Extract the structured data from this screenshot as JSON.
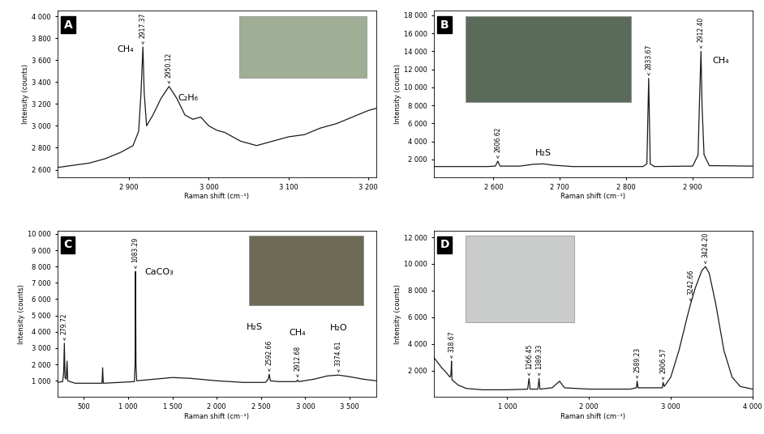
{
  "chart_data": [
    {
      "type": "line",
      "title": "A",
      "x_label": "Raman shift (cm⁻¹)",
      "y_label": "Intensity (counts)",
      "color": "#1a1a1a",
      "x": [
        2810,
        2830,
        2850,
        2870,
        2890,
        2905,
        2912,
        2915,
        2917.37,
        2919,
        2922,
        2930,
        2940,
        2950.12,
        2960,
        2970,
        2980,
        2990,
        3000,
        3010,
        3020,
        3040,
        3060,
        3080,
        3100,
        3120,
        3140,
        3160,
        3180,
        3200,
        3210
      ],
      "values": [
        2620,
        2640,
        2660,
        2700,
        2760,
        2820,
        2950,
        3300,
        3720,
        3300,
        3000,
        3100,
        3250,
        3360,
        3250,
        3100,
        3060,
        3080,
        3000,
        2960,
        2940,
        2860,
        2820,
        2860,
        2900,
        2920,
        2980,
        3020,
        3080,
        3140,
        3160
      ],
      "xlim": [
        2810,
        3210
      ],
      "ylim": [
        2530,
        4050
      ],
      "xticks": [
        {
          "value": 2900,
          "label": "2 900"
        },
        {
          "value": 3000,
          "label": "3 000"
        },
        {
          "value": 3100,
          "label": "3 100"
        },
        {
          "value": 3200,
          "label": "3 200"
        }
      ],
      "yticks": [
        {
          "value": 2600,
          "label": "2 600"
        },
        {
          "value": 2800,
          "label": "2 800"
        },
        {
          "value": 3000,
          "label": "3 000"
        },
        {
          "value": 3200,
          "label": "3 200"
        },
        {
          "value": 3400,
          "label": "3 400"
        },
        {
          "value": 3600,
          "label": "3 600"
        },
        {
          "value": 3800,
          "label": "3 800"
        },
        {
          "value": 4000,
          "label": "4 000"
        }
      ],
      "peak_labels": [
        {
          "x": 2917.37,
          "label": "2917.37"
        },
        {
          "x": 2950.12,
          "label": "2950.12"
        }
      ],
      "species_labels": [
        {
          "text": "CH₄",
          "x": 2917.37
        },
        {
          "text": "C₂H₆",
          "x": 2950.12
        }
      ]
    },
    {
      "type": "line",
      "title": "B",
      "x_label": "Raman shift (cm⁻¹)",
      "y_label": "Intensity (counts)",
      "color": "#1a1a1a",
      "x": [
        2510,
        2590,
        2603,
        2606.62,
        2610,
        2640,
        2660,
        2675,
        2690,
        2720,
        2825,
        2831,
        2833.67,
        2836,
        2842,
        2900,
        2908,
        2910,
        2912.4,
        2914,
        2917,
        2925,
        2990
      ],
      "values": [
        1200,
        1200,
        1250,
        1800,
        1250,
        1250,
        1450,
        1500,
        1350,
        1200,
        1200,
        1500,
        11000,
        1500,
        1200,
        1250,
        2500,
        8000,
        14000,
        8000,
        2500,
        1300,
        1250
      ],
      "xlim": [
        2510,
        2990
      ],
      "ylim": [
        0,
        18500
      ],
      "xticks": [
        {
          "value": 2600,
          "label": "2 600"
        },
        {
          "value": 2700,
          "label": "2 700"
        },
        {
          "value": 2800,
          "label": "2 800"
        },
        {
          "value": 2900,
          "label": "2 900"
        }
      ],
      "yticks": [
        {
          "value": 2000,
          "label": "2 000"
        },
        {
          "value": 4000,
          "label": "4 000"
        },
        {
          "value": 6000,
          "label": "6 000"
        },
        {
          "value": 8000,
          "label": "8 000"
        },
        {
          "value": 10000,
          "label": "10 000"
        },
        {
          "value": 12000,
          "label": "12 000"
        },
        {
          "value": 14000,
          "label": "14 000"
        },
        {
          "value": 16000,
          "label": "16 000"
        },
        {
          "value": 18000,
          "label": "18 000"
        }
      ],
      "peak_labels": [
        {
          "x": 2606.62,
          "label": "2606.62"
        },
        {
          "x": 2833.67,
          "label": "2833.67"
        },
        {
          "x": 2912.4,
          "label": "2912.40"
        }
      ],
      "species_labels": [
        {
          "text": "H₂S",
          "x": 2675
        },
        {
          "text": "CH₄",
          "x": 2912.4
        }
      ]
    },
    {
      "type": "line",
      "title": "C",
      "x_label": "Raman shift (cm⁻¹)",
      "y_label": "Intensity (counts)",
      "color": "#1a1a1a",
      "x": [
        200,
        260,
        272,
        279.72,
        287,
        300,
        310,
        318,
        400,
        600,
        705,
        712,
        719,
        900,
        1070,
        1078,
        1083.29,
        1088,
        1096,
        1300,
        1500,
        1700,
        2000,
        2300,
        2550,
        2580,
        2592.66,
        2605,
        2700,
        2900,
        2912.68,
        2925,
        3100,
        3250,
        3374.61,
        3500,
        3650,
        3800
      ],
      "values": [
        900,
        950,
        1500,
        3300,
        1200,
        1100,
        2200,
        1000,
        850,
        850,
        850,
        1800,
        850,
        900,
        950,
        2000,
        7700,
        2000,
        1000,
        1100,
        1200,
        1150,
        1000,
        900,
        900,
        1100,
        1400,
        1000,
        950,
        950,
        1050,
        950,
        1100,
        1300,
        1350,
        1250,
        1100,
        1000
      ],
      "xlim": [
        200,
        3800
      ],
      "ylim": [
        0,
        10200
      ],
      "xticks": [
        500,
        {
          "value": 1000,
          "label": "1 000"
        },
        {
          "value": 1500,
          "label": "1 500"
        },
        {
          "value": 2000,
          "label": "2 000"
        },
        {
          "value": 2500,
          "label": "2 500"
        },
        {
          "value": 3000,
          "label": "3 000"
        },
        {
          "value": 3500,
          "label": "3 500"
        }
      ],
      "yticks": [
        {
          "value": 1000,
          "label": "1 000"
        },
        {
          "value": 2000,
          "label": "2 000"
        },
        {
          "value": 3000,
          "label": "3 000"
        },
        {
          "value": 4000,
          "label": "4 000"
        },
        {
          "value": 5000,
          "label": "5 000"
        },
        {
          "value": 6000,
          "label": "6 000"
        },
        {
          "value": 7000,
          "label": "7 000"
        },
        {
          "value": 8000,
          "label": "8 000"
        },
        {
          "value": 9000,
          "label": "9 000"
        },
        {
          "value": 10000,
          "label": "10 000"
        }
      ],
      "peak_labels": [
        {
          "x": 279.72,
          "label": "279.72"
        },
        {
          "x": 1083.29,
          "label": "1083.29"
        },
        {
          "x": 2592.66,
          "label": "2592.66"
        },
        {
          "x": 2912.68,
          "label": "2912.68"
        },
        {
          "x": 3374.61,
          "label": "3374.61"
        }
      ],
      "species_labels": [
        {
          "text": "CaCO₃",
          "x": 1083.29
        },
        {
          "text": "H₂S",
          "x": 2592.66
        },
        {
          "text": "CH₄",
          "x": 2912.68
        },
        {
          "text": "H₂O",
          "x": 3374.61
        }
      ]
    },
    {
      "type": "line",
      "title": "D",
      "x_label": "Raman shift (cm⁻¹)",
      "y_label": "Intensity (counts)",
      "color": "#1a1a1a",
      "x": [
        100,
        150,
        200,
        260,
        300,
        312,
        318.67,
        325,
        400,
        500,
        700,
        1000,
        1250,
        1266.45,
        1280,
        1375,
        1389.33,
        1400,
        1550,
        1640,
        1700,
        2000,
        2500,
        2580,
        2589.23,
        2600,
        2895,
        2906.57,
        2920,
        3000,
        3100,
        3200,
        3242.66,
        3300,
        3380,
        3424.2,
        3470,
        3550,
        3650,
        3750,
        3850,
        4000
      ],
      "values": [
        3000,
        2600,
        2200,
        1800,
        1500,
        1700,
        2700,
        1300,
        900,
        650,
        550,
        550,
        600,
        1400,
        600,
        600,
        1400,
        600,
        700,
        1200,
        700,
        600,
        600,
        700,
        1200,
        700,
        700,
        1100,
        800,
        1500,
        3500,
        6000,
        7000,
        8200,
        9500,
        9800,
        9300,
        7000,
        3500,
        1500,
        800,
        600
      ],
      "xlim": [
        100,
        4000
      ],
      "ylim": [
        0,
        12500
      ],
      "xticks": [
        {
          "value": 1000,
          "label": "1 000"
        },
        {
          "value": 2000,
          "label": "2 000"
        },
        {
          "value": 3000,
          "label": "3 000"
        },
        {
          "value": 4000,
          "label": "4 000"
        }
      ],
      "yticks": [
        {
          "value": 2000,
          "label": "2 000"
        },
        {
          "value": 4000,
          "label": "4 000"
        },
        {
          "value": 6000,
          "label": "6 000"
        },
        {
          "value": 8000,
          "label": "8 000"
        },
        {
          "value": 10000,
          "label": "10 000"
        },
        {
          "value": 12000,
          "label": "12 000"
        }
      ],
      "peak_labels": [
        {
          "x": 318.67,
          "label": "318.67"
        },
        {
          "x": 1266.45,
          "label": "1266.45"
        },
        {
          "x": 1389.33,
          "label": "1389.33"
        },
        {
          "x": 2589.23,
          "label": "2589.23"
        },
        {
          "x": 2906.57,
          "label": "2906.57"
        },
        {
          "x": 3242.66,
          "label": "3242.66"
        },
        {
          "x": 3424.2,
          "label": "3424.20"
        }
      ]
    }
  ]
}
